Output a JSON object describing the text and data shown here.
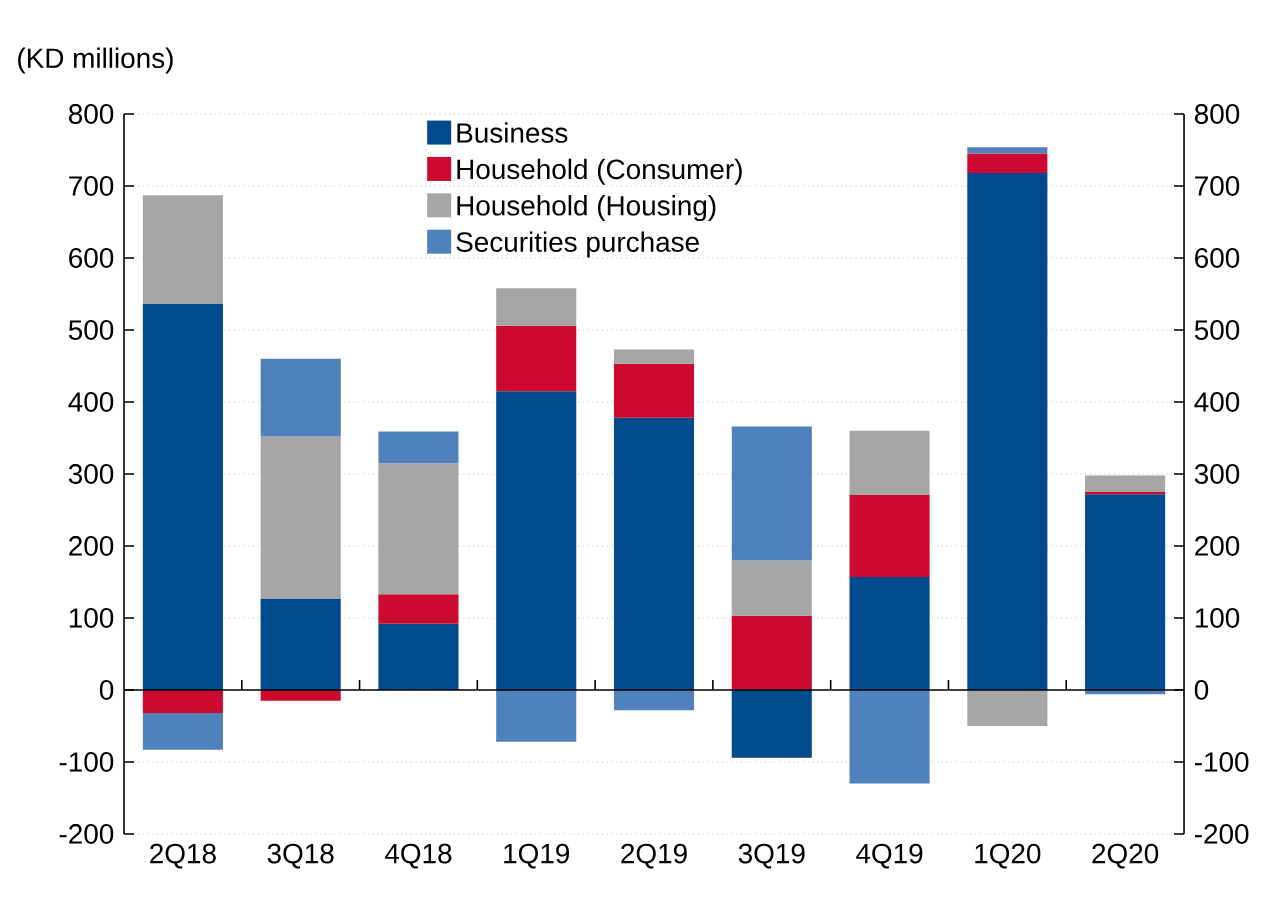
{
  "chart_data": {
    "type": "bar",
    "stacked": true,
    "ylabel": "(KD millions)",
    "categories": [
      "2Q18",
      "3Q18",
      "4Q18",
      "1Q19",
      "2Q19",
      "3Q19",
      "4Q19",
      "1Q20",
      "2Q20"
    ],
    "series": [
      {
        "name": "Business",
        "color": "#004a8d",
        "values": [
          536,
          127,
          92,
          415,
          378,
          -94,
          157,
          718,
          272
        ]
      },
      {
        "name": "Household (Consumer)",
        "color": "#cc0a2f",
        "values": [
          -32,
          -15,
          41,
          91,
          75,
          103,
          114,
          27,
          3
        ]
      },
      {
        "name": "Household (Housing)",
        "color": "#a6a6a6",
        "values": [
          151,
          225,
          182,
          52,
          20,
          77,
          89,
          -50,
          23
        ]
      },
      {
        "name": "Securities purchase",
        "color": "#4f81bd",
        "values": [
          -51,
          108,
          44,
          -72,
          -28,
          186,
          -130,
          9,
          -6
        ]
      }
    ],
    "ylim": [
      -200,
      800
    ],
    "yticks": [
      -200,
      -100,
      0,
      100,
      200,
      300,
      400,
      500,
      600,
      700,
      800
    ],
    "y2lim": [
      -200,
      800
    ],
    "y2ticks": [
      -200,
      -100,
      0,
      100,
      200,
      300,
      400,
      500,
      600,
      700,
      800
    ],
    "grid": "y",
    "legend": "top"
  }
}
